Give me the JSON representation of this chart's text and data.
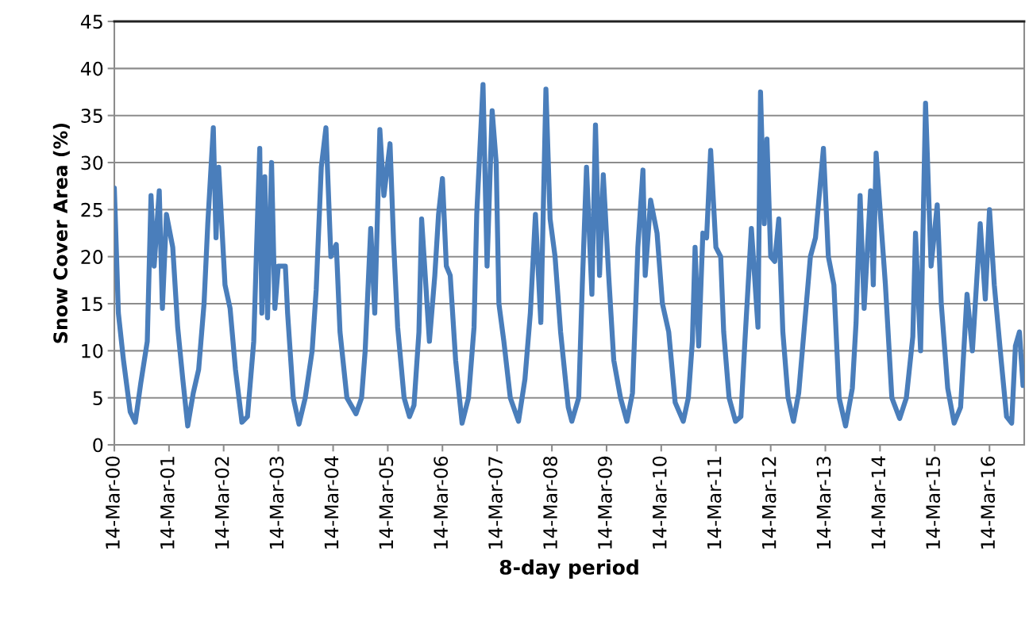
{
  "chart_data": {
    "type": "line",
    "xlabel": "8-day period",
    "ylabel": "Snow Cover Area (%)",
    "xlim": [
      "2000-03-14",
      "2016-11-01"
    ],
    "xticks": [
      {
        "value": "2000-03-14",
        "label": "14-Mar-00"
      },
      {
        "value": "2001-03-14",
        "label": "14-Mar-01"
      },
      {
        "value": "2002-03-14",
        "label": "14-Mar-02"
      },
      {
        "value": "2003-03-14",
        "label": "14-Mar-03"
      },
      {
        "value": "2004-03-14",
        "label": "14-Mar-04"
      },
      {
        "value": "2005-03-14",
        "label": "14-Mar-05"
      },
      {
        "value": "2006-03-14",
        "label": "14-Mar-06"
      },
      {
        "value": "2007-03-14",
        "label": "14-Mar-07"
      },
      {
        "value": "2008-03-14",
        "label": "14-Mar-08"
      },
      {
        "value": "2009-03-14",
        "label": "14-Mar-09"
      },
      {
        "value": "2010-03-14",
        "label": "14-Mar-10"
      },
      {
        "value": "2011-03-14",
        "label": "14-Mar-11"
      },
      {
        "value": "2012-03-14",
        "label": "14-Mar-12"
      },
      {
        "value": "2013-03-14",
        "label": "14-Mar-13"
      },
      {
        "value": "2014-03-14",
        "label": "14-Mar-14"
      },
      {
        "value": "2015-03-14",
        "label": "14-Mar-15"
      },
      {
        "value": "2016-03-14",
        "label": "14-Mar-16"
      }
    ],
    "ylim": [
      0,
      45
    ],
    "yticks": [
      0,
      5,
      10,
      15,
      20,
      25,
      30,
      35,
      40,
      45
    ],
    "grid": "y",
    "marker": "none",
    "line_style": "solid",
    "series": [
      {
        "color": "#4a7ebb",
        "x": [
          "2000-03-14",
          "2000-04-10",
          "2000-05-14",
          "2000-06-28",
          "2000-08-01",
          "2000-09-06",
          "2000-10-20",
          "2000-11-14",
          "2000-12-05",
          "2001-01-08",
          "2001-01-29",
          "2001-02-25",
          "2001-04-08",
          "2001-05-11",
          "2001-06-14",
          "2001-07-17",
          "2001-08-23",
          "2001-09-28",
          "2001-11-03",
          "2001-11-28",
          "2002-01-04",
          "2002-01-22",
          "2002-02-09",
          "2002-03-23",
          "2002-04-26",
          "2002-06-01",
          "2002-07-14",
          "2002-08-20",
          "2002-10-01",
          "2002-10-20",
          "2002-11-10",
          "2002-11-24",
          "2002-12-14",
          "2003-01-01",
          "2003-01-28",
          "2003-02-19",
          "2003-03-14",
          "2003-04-30",
          "2003-05-15",
          "2003-06-22",
          "2003-07-30",
          "2003-09-10",
          "2003-10-26",
          "2003-11-22",
          "2003-12-26",
          "2004-01-26",
          "2004-02-28",
          "2004-04-04",
          "2004-04-29",
          "2004-06-14",
          "2004-08-14",
          "2004-09-20",
          "2004-10-14",
          "2004-11-20",
          "2004-12-17",
          "2005-01-20",
          "2005-02-16",
          "2005-03-29",
          "2005-04-22",
          "2005-05-19",
          "2005-07-01",
          "2005-08-06",
          "2005-09-05",
          "2005-10-08",
          "2005-10-26",
          "2005-12-17",
          "2006-01-22",
          "2006-02-16",
          "2006-03-14",
          "2006-04-09",
          "2006-05-05",
          "2006-06-10",
          "2006-07-23",
          "2006-09-04",
          "2006-10-11",
          "2006-10-29",
          "2006-12-10",
          "2007-01-06",
          "2007-02-09",
          "2007-03-08",
          "2007-03-26",
          "2007-04-28",
          "2007-06-10",
          "2007-08-04",
          "2007-09-16",
          "2007-10-22",
          "2007-11-25",
          "2007-12-31",
          "2008-02-03",
          "2008-03-02",
          "2008-04-04",
          "2008-05-11",
          "2008-07-01",
          "2008-07-25",
          "2008-09-09",
          "2008-10-03",
          "2008-10-31",
          "2008-12-06",
          "2008-12-30",
          "2009-01-26",
          "2009-02-20",
          "2009-03-28",
          "2009-05-01",
          "2009-06-15",
          "2009-07-28",
          "2009-09-03",
          "2009-10-09",
          "2009-11-12",
          "2009-11-27",
          "2010-01-02",
          "2010-02-14",
          "2010-03-22",
          "2010-05-03",
          "2010-06-15",
          "2010-08-08",
          "2010-09-11",
          "2010-10-08",
          "2010-10-26",
          "2010-11-19",
          "2010-12-17",
          "2011-01-11",
          "2011-02-07",
          "2011-03-14",
          "2011-04-15",
          "2011-05-05",
          "2011-06-10",
          "2011-07-23",
          "2011-08-28",
          "2011-09-22",
          "2011-11-06",
          "2011-12-20",
          "2012-01-06",
          "2012-01-31",
          "2012-02-18",
          "2012-03-14",
          "2012-04-10",
          "2012-05-07",
          "2012-06-03",
          "2012-07-08",
          "2012-08-13",
          "2012-09-17",
          "2012-10-22",
          "2012-12-04",
          "2013-01-07",
          "2013-03-01",
          "2013-04-03",
          "2013-05-10",
          "2013-06-14",
          "2013-07-27",
          "2013-09-10",
          "2013-10-05",
          "2013-11-01",
          "2013-11-28",
          "2014-01-10",
          "2014-01-28",
          "2014-02-16",
          "2014-03-23",
          "2014-04-19",
          "2014-06-01",
          "2014-07-23",
          "2014-09-06",
          "2014-10-19",
          "2014-11-06",
          "2014-12-10",
          "2015-01-12",
          "2015-02-18",
          "2015-03-31",
          "2015-04-27",
          "2015-06-09",
          "2015-07-22",
          "2015-09-03",
          "2015-10-16",
          "2015-11-21",
          "2016-01-12",
          "2016-02-15",
          "2016-03-14",
          "2016-04-15",
          "2016-05-31",
          "2016-07-06",
          "2016-08-09",
          "2016-09-03",
          "2016-09-30",
          "2016-10-24"
        ],
        "values": [
          27.3,
          14,
          9,
          3.5,
          2.4,
          6.5,
          11,
          26.5,
          19,
          27,
          14.5,
          24.5,
          21,
          12.5,
          7,
          2.0,
          5.5,
          8,
          15,
          23.5,
          33.7,
          22,
          29.5,
          17,
          14.5,
          8,
          2.4,
          3,
          11,
          21,
          31.5,
          14,
          28.5,
          13.5,
          30,
          14.5,
          19,
          19,
          14,
          5,
          2.2,
          5,
          10,
          16.5,
          29.5,
          33.7,
          20,
          21.3,
          12,
          5,
          3.3,
          5,
          10,
          23,
          14,
          33.5,
          26.5,
          32,
          21.5,
          12.5,
          5,
          3,
          4.2,
          12,
          24,
          11,
          18,
          24.5,
          28.3,
          19,
          18,
          9,
          2.3,
          5,
          12.5,
          24.5,
          38.3,
          19,
          35.5,
          30,
          15,
          11,
          5,
          2.5,
          7,
          14,
          24.5,
          13,
          37.8,
          24,
          20,
          12,
          4,
          2.5,
          5,
          17,
          29.5,
          16,
          34,
          18,
          28.7,
          18,
          9,
          5,
          2.5,
          5.5,
          21,
          29.2,
          18,
          26,
          22.5,
          15,
          12,
          4.5,
          2.5,
          5,
          11,
          21,
          10.5,
          22.5,
          22,
          31.3,
          21,
          20,
          12,
          5,
          2.5,
          3,
          10.5,
          23,
          12.5,
          37.5,
          23.5,
          32.5,
          20,
          19.5,
          24,
          12,
          5,
          2.5,
          5.5,
          12,
          20,
          22,
          31.5,
          20,
          17,
          5,
          2,
          6,
          13,
          26.5,
          14.5,
          27,
          17,
          31,
          23,
          17,
          5,
          2.8,
          5,
          11.5,
          22.5,
          10,
          36.3,
          19,
          25.5,
          15,
          6,
          2.3,
          4,
          16,
          10,
          23.5,
          15.5,
          25,
          17,
          9,
          3,
          2.3,
          10.5,
          12,
          6.3
        ]
      }
    ]
  }
}
